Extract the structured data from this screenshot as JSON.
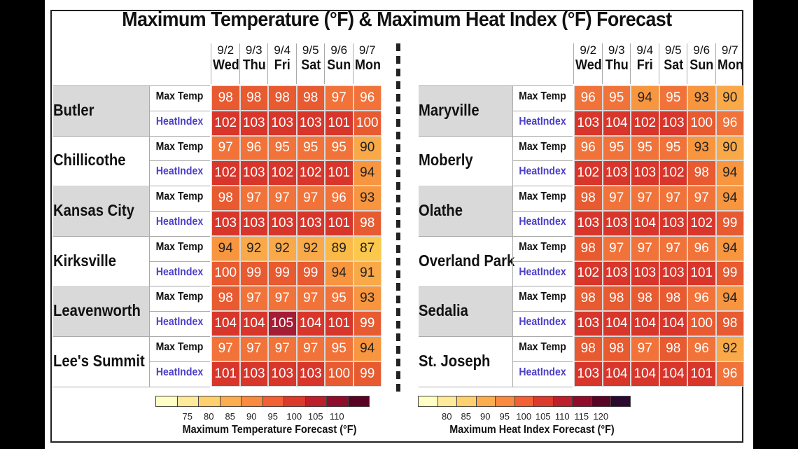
{
  "title": "Maximum Temperature (°F) & Maximum Heat Index (°F) Forecast",
  "row_labels": {
    "max_temp": "Max Temp",
    "heat_index": "HeatIndex"
  },
  "chart_data": {
    "type": "table",
    "days": [
      {
        "date": "9/2",
        "weekday": "Wed"
      },
      {
        "date": "9/3",
        "weekday": "Thu"
      },
      {
        "date": "9/4",
        "weekday": "Fri"
      },
      {
        "date": "9/5",
        "weekday": "Sat"
      },
      {
        "date": "9/6",
        "weekday": "Sun"
      },
      {
        "date": "9/7",
        "weekday": "Mon"
      }
    ],
    "panels": [
      {
        "cities": [
          {
            "name": "Butler",
            "max_temp": [
              98,
              98,
              98,
              98,
              97,
              96
            ],
            "heat_index": [
              102,
              103,
              103,
              103,
              101,
              100
            ]
          },
          {
            "name": "Chillicothe",
            "max_temp": [
              97,
              96,
              95,
              95,
              95,
              90
            ],
            "heat_index": [
              102,
              103,
              102,
              102,
              101,
              94
            ]
          },
          {
            "name": "Kansas City",
            "max_temp": [
              98,
              97,
              97,
              97,
              96,
              93
            ],
            "heat_index": [
              103,
              103,
              103,
              103,
              101,
              98
            ]
          },
          {
            "name": "Kirksville",
            "max_temp": [
              94,
              92,
              92,
              92,
              89,
              87
            ],
            "heat_index": [
              100,
              99,
              99,
              99,
              94,
              91
            ]
          },
          {
            "name": "Leavenworth",
            "max_temp": [
              98,
              97,
              97,
              97,
              95,
              93
            ],
            "heat_index": [
              104,
              104,
              105,
              104,
              101,
              99
            ]
          },
          {
            "name": "Lee's Summit",
            "max_temp": [
              97,
              97,
              97,
              97,
              95,
              94
            ],
            "heat_index": [
              101,
              103,
              103,
              103,
              100,
              99
            ]
          }
        ]
      },
      {
        "cities": [
          {
            "name": "Maryville",
            "max_temp": [
              96,
              95,
              94,
              95,
              93,
              90
            ],
            "heat_index": [
              103,
              104,
              102,
              103,
              100,
              96
            ]
          },
          {
            "name": "Moberly",
            "max_temp": [
              96,
              95,
              95,
              95,
              93,
              90
            ],
            "heat_index": [
              102,
              103,
              103,
              102,
              98,
              94
            ]
          },
          {
            "name": "Olathe",
            "max_temp": [
              98,
              97,
              97,
              97,
              97,
              94
            ],
            "heat_index": [
              103,
              103,
              104,
              103,
              102,
              99
            ]
          },
          {
            "name": "Overland Park",
            "max_temp": [
              98,
              97,
              97,
              97,
              96,
              94
            ],
            "heat_index": [
              102,
              103,
              103,
              103,
              101,
              99
            ]
          },
          {
            "name": "Sedalia",
            "max_temp": [
              98,
              98,
              98,
              98,
              96,
              94
            ],
            "heat_index": [
              103,
              104,
              104,
              104,
              100,
              98
            ]
          },
          {
            "name": "St. Joseph",
            "max_temp": [
              98,
              98,
              97,
              98,
              96,
              92
            ],
            "heat_index": [
              103,
              104,
              104,
              104,
              101,
              96
            ]
          }
        ]
      }
    ],
    "legends": [
      {
        "title": "Maximum Temperature Forecast (°F)",
        "ticks": [
          "75",
          "80",
          "85",
          "90",
          "95",
          "100",
          "105",
          "110"
        ],
        "colors": [
          "#ffffc5",
          "#ffe99a",
          "#fed06e",
          "#fcad4f",
          "#f98a3f",
          "#f26033",
          "#dc3a2b",
          "#bd1f2b",
          "#8f0d2b",
          "#5a0424"
        ]
      },
      {
        "title": "Maximum Heat Index Forecast (°F)",
        "ticks": [
          "80",
          "85",
          "90",
          "95",
          "100",
          "105",
          "110",
          "115",
          "120"
        ],
        "colors": [
          "#ffffc5",
          "#ffe99a",
          "#fed06e",
          "#fcad4f",
          "#f98a3f",
          "#f26033",
          "#dc3a2b",
          "#bd1f2b",
          "#8f0d2b",
          "#5a0424",
          "#2a0a2e"
        ]
      }
    ]
  }
}
